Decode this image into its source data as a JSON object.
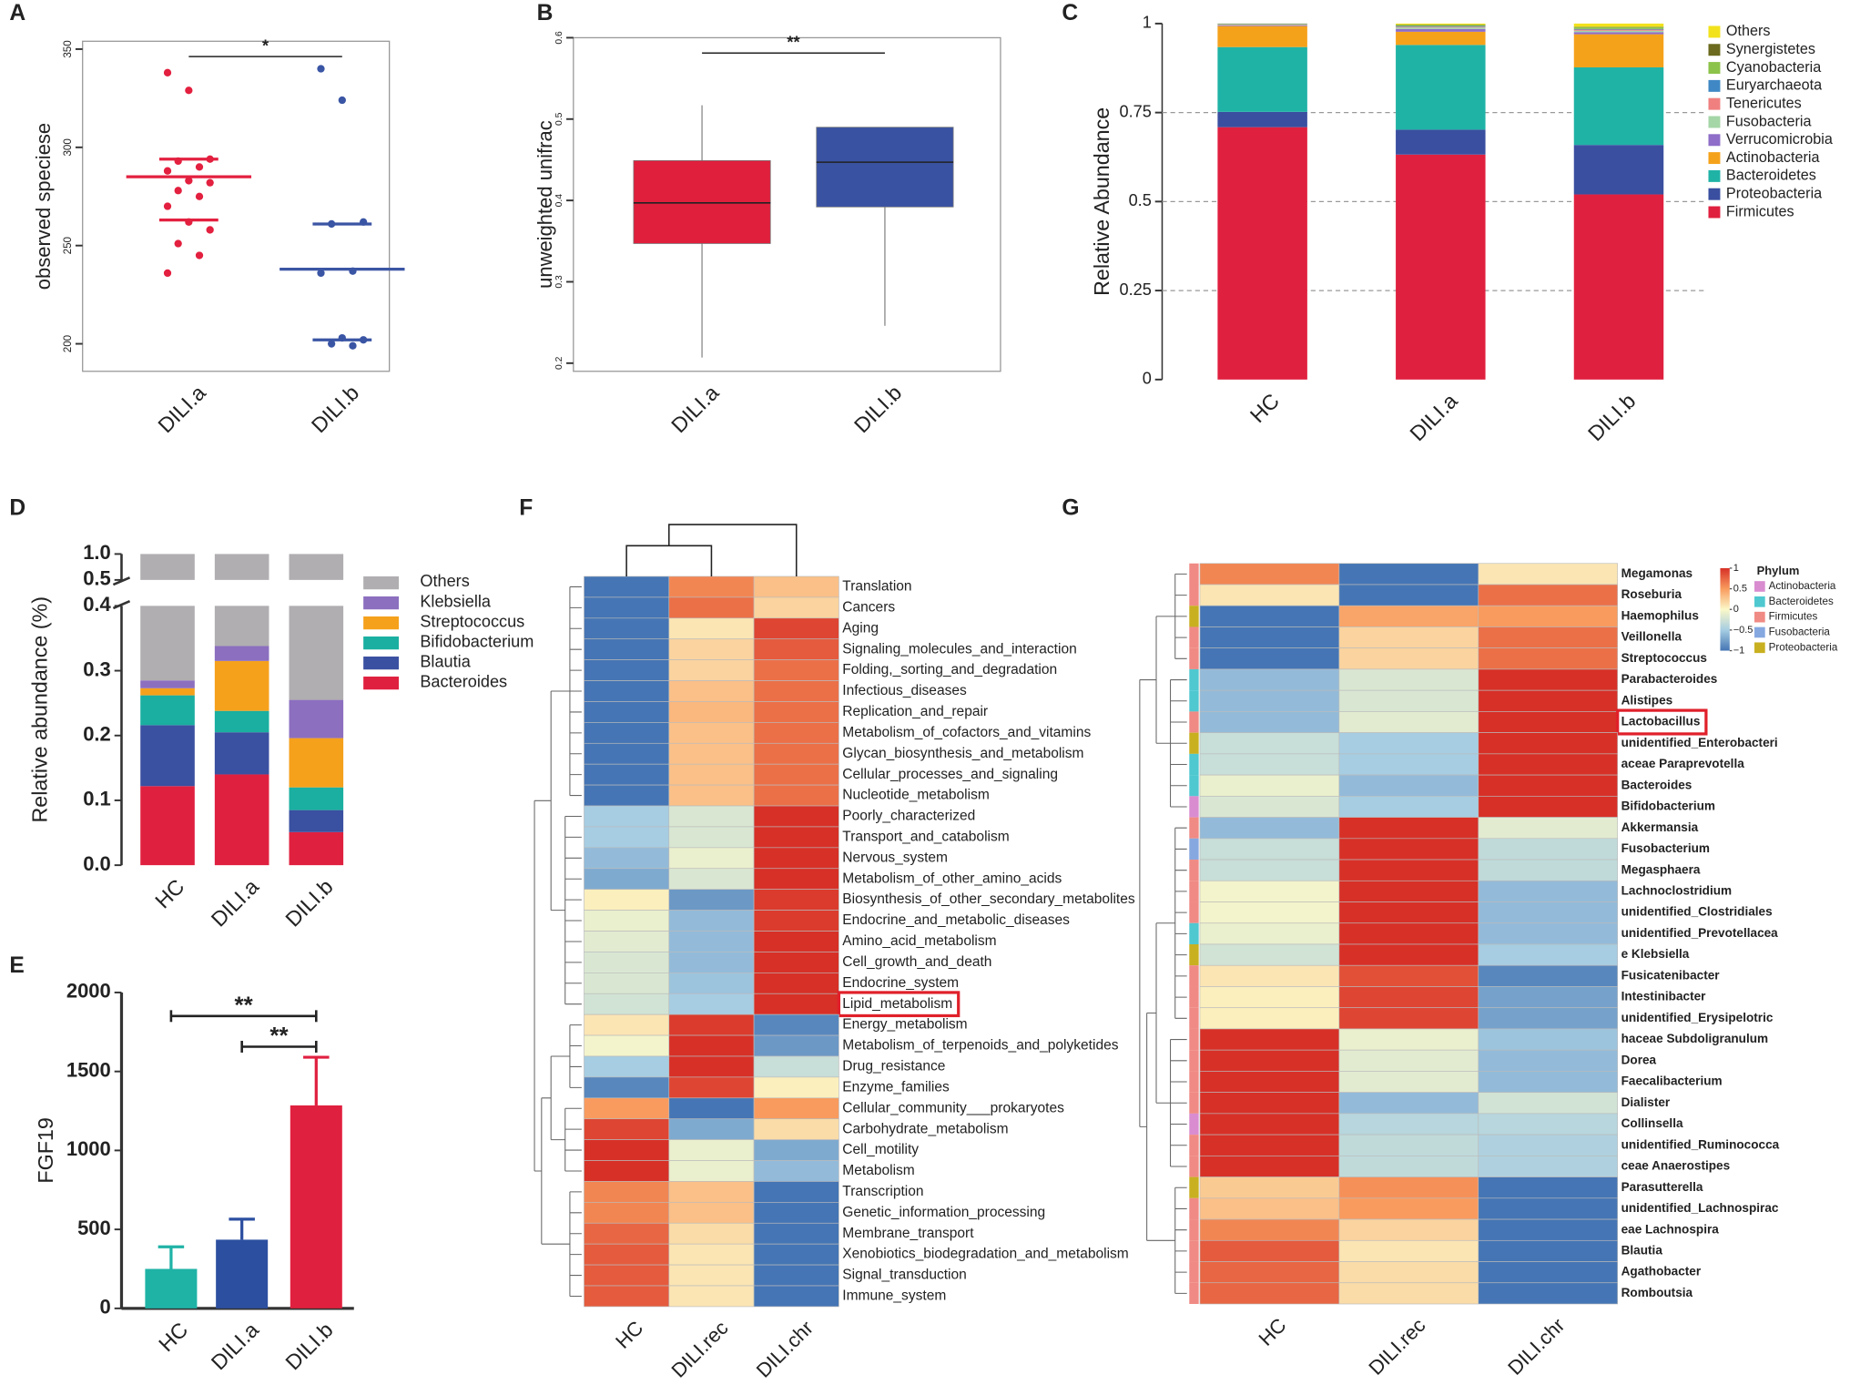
{
  "chart_data": [
    {
      "panel_label": "A",
      "type": "strip",
      "y_label": "observed speciese",
      "categories": [
        "DILI.a",
        "DILI.b"
      ],
      "points": [
        [
          338,
          329,
          294,
          293,
          290,
          288,
          283,
          282,
          278,
          275,
          270,
          262,
          258,
          251,
          245,
          236
        ],
        [
          340,
          324,
          262,
          261,
          237,
          236,
          203,
          202,
          200,
          199
        ]
      ],
      "summary_lines": [
        [
          294,
          285,
          263
        ],
        [
          261,
          238,
          202
        ]
      ],
      "colors": [
        "#e3203f",
        "#3a55a4"
      ],
      "ylim": [
        186,
        354
      ],
      "yticks": [
        200,
        250,
        300,
        350
      ],
      "annotations": [
        {
          "text": "*",
          "pair": [
            "DILI.a",
            "DILI.b"
          ]
        }
      ]
    },
    {
      "panel_label": "B",
      "type": "box",
      "y_label": "unweighted unifrac",
      "categories": [
        "DILI.a",
        "DILI.b"
      ],
      "boxes": [
        {
          "min": 0.207,
          "q1": 0.347,
          "median": 0.397,
          "q3": 0.449,
          "max": 0.517
        },
        {
          "min": 0.246,
          "q1": 0.392,
          "median": 0.447,
          "q3": 0.49,
          "max": 0.49
        }
      ],
      "colors": [
        "#e01f3c",
        "#3a52a2"
      ],
      "ylim": [
        0.19,
        0.6
      ],
      "yticks": [
        0.2,
        0.3,
        0.4,
        0.5,
        0.6
      ],
      "annotations": [
        {
          "text": "**",
          "pair": [
            "DILI.a",
            "DILI.b"
          ]
        }
      ]
    },
    {
      "panel_label": "C",
      "type": "stacked_bar",
      "y_label": "Relative Abundance",
      "categories": [
        "HC",
        "DILI.a",
        "DILI.b"
      ],
      "series": [
        {
          "name": "Others",
          "color": "#f2e21c",
          "values": [
            0.001,
            0.006,
            0.01
          ]
        },
        {
          "name": "Synergistetes",
          "color": "#6b6a1e",
          "values": [
            0.001,
            0.001,
            0.001
          ]
        },
        {
          "name": "Cyanobacteria",
          "color": "#8cc34a",
          "values": [
            0.001,
            0.003,
            0.005
          ]
        },
        {
          "name": "Euryarchaeota",
          "color": "#3f88c5",
          "values": [
            0.001,
            0.002,
            0.002
          ]
        },
        {
          "name": "Tenericutes",
          "color": "#f08080",
          "values": [
            0.001,
            0.002,
            0.003
          ]
        },
        {
          "name": "Fusobacteria",
          "color": "#a5d6a7",
          "values": [
            0.001,
            0.004,
            0.004
          ]
        },
        {
          "name": "Verrucomicrobia",
          "color": "#8e6ec8",
          "values": [
            0.002,
            0.008,
            0.006
          ]
        },
        {
          "name": "Actinobacteria",
          "color": "#f5a21b",
          "values": [
            0.059,
            0.037,
            0.093
          ]
        },
        {
          "name": "Bacteroidetes",
          "color": "#1fb3a6",
          "values": [
            0.182,
            0.238,
            0.218
          ]
        },
        {
          "name": "Proteobacteria",
          "color": "#3a4fa0",
          "values": [
            0.043,
            0.07,
            0.139
          ]
        },
        {
          "name": "Firmicutes",
          "color": "#e0203f",
          "values": [
            0.709,
            0.632,
            0.52
          ]
        }
      ],
      "ylim": [
        0,
        1
      ],
      "yticks": [
        0,
        0.25,
        0.5,
        0.75,
        1
      ],
      "grid": true
    },
    {
      "panel_label": "D",
      "type": "stacked_bar",
      "y_label": "Relative abundance (%)",
      "categories": [
        "HC",
        "DILI.a",
        "DILI.b"
      ],
      "series": [
        {
          "name": "Others",
          "color": "#b0aeb0",
          "values": [
            0.715,
            0.662,
            0.745
          ]
        },
        {
          "name": "Klebsiella",
          "color": "#8c6fbf",
          "values": [
            0.012,
            0.023,
            0.059
          ]
        },
        {
          "name": "Streptococcus",
          "color": "#f5a11c",
          "values": [
            0.011,
            0.077,
            0.076
          ]
        },
        {
          "name": "Bifidobacterium",
          "color": "#1aafa0",
          "values": [
            0.046,
            0.033,
            0.035
          ]
        },
        {
          "name": "Blautia",
          "color": "#3a50a0",
          "values": [
            0.094,
            0.065,
            0.034
          ]
        },
        {
          "name": "Bacteroides",
          "color": "#e0203f",
          "values": [
            0.122,
            0.14,
            0.051
          ]
        }
      ],
      "ylim": [
        0,
        1
      ],
      "axis_break": [
        0.4,
        0.5
      ],
      "yticks": [
        {
          "value": 0,
          "label": "0.0"
        },
        0.1,
        0.2,
        0.3,
        0.4,
        0.5,
        {
          "value": 1,
          "label": "1.0"
        }
      ]
    },
    {
      "panel_label": "E",
      "type": "bar",
      "y_label": "FGF19",
      "categories": [
        "HC",
        "DILI.a",
        "DILI.b"
      ],
      "values": [
        250,
        435,
        1285
      ],
      "errors": [
        140,
        130,
        305
      ],
      "colors": [
        "#1fb3a6",
        "#2c4fa0",
        "#e0203f"
      ],
      "ylim": [
        0,
        2000
      ],
      "yticks": [
        0,
        500,
        1000,
        1500,
        2000
      ],
      "annotations": [
        {
          "text": "**",
          "pair": [
            "HC",
            "DILI.b"
          ]
        },
        {
          "text": "**",
          "pair": [
            "DILI.a",
            "DILI.b"
          ]
        }
      ]
    },
    {
      "panel_label": "F",
      "type": "heatmap",
      "columns": [
        "HC",
        "DILI.rec",
        "DILI.chr"
      ],
      "rows": [
        "Translation",
        "Cancers",
        "Aging",
        "Signaling_molecules_and_interaction",
        "Folding,_sorting_and_degradation",
        "Infectious_diseases",
        "Replication_and_repair",
        "Metabolism_of_cofactors_and_vitamins",
        "Glycan_biosynthesis_and_metabolism",
        "Cellular_processes_and_signaling",
        "Nucleotide_metabolism",
        "Poorly_characterized",
        "Transport_and_catabolism",
        "Nervous_system",
        "Metabolism_of_other_amino_acids",
        "Biosynthesis_of_other_secondary_metabolites",
        "Endocrine_and_metabolic_diseases",
        "Amino_acid_metabolism",
        "Cell_growth_and_death",
        "Endocrine_system",
        "Lipid_metabolism",
        "Energy_metabolism",
        "Metabolism_of_terpenoids_and_polyketides",
        "Drug_resistance",
        "Enzyme_families",
        "Cellular_community___prokaryotes",
        "Carbohydrate_metabolism",
        "Cell_motility",
        "Metabolism",
        "Transcription",
        "Genetic_information_processing",
        "Membrane_transport",
        "Xenobiotics_biodegradation_and_metabolism",
        "Signal_transduction",
        "Immune_system"
      ],
      "values": [
        [
          -1,
          0.6,
          0.3
        ],
        [
          -1,
          0.7,
          0.2
        ],
        [
          -1,
          0.1,
          0.9
        ],
        [
          -1,
          0.2,
          0.8
        ],
        [
          -1,
          0.2,
          0.7
        ],
        [
          -1,
          0.3,
          0.7
        ],
        [
          -1,
          0.35,
          0.7
        ],
        [
          -1,
          0.3,
          0.7
        ],
        [
          -1,
          0.3,
          0.7
        ],
        [
          -1,
          0.3,
          0.7
        ],
        [
          -1,
          0.3,
          0.7
        ],
        [
          -0.5,
          -0.2,
          1
        ],
        [
          -0.5,
          -0.2,
          1
        ],
        [
          -0.6,
          -0.1,
          1
        ],
        [
          -0.7,
          -0.2,
          1
        ],
        [
          0.05,
          -0.8,
          0.95
        ],
        [
          -0.1,
          -0.6,
          0.95
        ],
        [
          -0.15,
          -0.6,
          1
        ],
        [
          -0.2,
          -0.6,
          1
        ],
        [
          -0.2,
          -0.55,
          1
        ],
        [
          -0.25,
          -0.5,
          1
        ],
        [
          0.1,
          0.95,
          -0.9
        ],
        [
          -0.05,
          1,
          -0.8
        ],
        [
          -0.5,
          1,
          -0.3
        ],
        [
          -0.9,
          0.9,
          0.05
        ],
        [
          0.5,
          -1,
          0.5
        ],
        [
          0.9,
          -0.7,
          0.15
        ],
        [
          1,
          -0.1,
          -0.7
        ],
        [
          1,
          -0.1,
          -0.6
        ],
        [
          0.6,
          0.3,
          -1
        ],
        [
          0.6,
          0.3,
          -1
        ],
        [
          0.75,
          0.15,
          -1
        ],
        [
          0.8,
          0.1,
          -1
        ],
        [
          0.8,
          0.1,
          -1
        ],
        [
          0.8,
          0.1,
          -1
        ]
      ],
      "clim": [
        -1,
        1
      ],
      "colors": [
        "#4575b4",
        "#a6cde2",
        "#fbf8c8",
        "#f99b5e",
        "#d73027"
      ],
      "highlight_row": "Lipid_metabolism"
    },
    {
      "panel_label": "G",
      "type": "heatmap",
      "columns": [
        "HC",
        "DILI.rec",
        "DILI.chr"
      ],
      "rows": [
        "Megamonas",
        "Roseburia",
        "Haemophilus",
        "Veillonella",
        "Streptococcus",
        "Parabacteroides",
        "Alistipes",
        "Lactobacillus",
        "unidentified_Enterobacteri",
        "aceae Paraprevotella",
        "Bacteroides",
        "Bifidobacterium",
        "Akkermansia",
        "Fusobacterium",
        "Megasphaera",
        "Lachnoclostridium",
        "unidentified_Clostridiales",
        "unidentified_Prevotellacea",
        "e Klebsiella",
        "Fusicatenibacter",
        "Intestinibacter",
        "unidentified_Erysipelotric",
        "haceae Subdoligranulum",
        "Dorea",
        "Faecalibacterium",
        "Dialister",
        "Collinsella",
        "unidentified_Ruminococca",
        "ceae Anaerostipes",
        "Parasutterella",
        "unidentified_Lachnospirac",
        "eae Lachnospira",
        "Blautia",
        "Agathobacter",
        "Romboutsia"
      ],
      "values": [
        [
          0.6,
          -1,
          0.1
        ],
        [
          0.1,
          -1,
          0.7
        ],
        [
          -1,
          0.45,
          0.5
        ],
        [
          -1,
          0.2,
          0.7
        ],
        [
          -1,
          0.2,
          0.7
        ],
        [
          -0.6,
          -0.2,
          1
        ],
        [
          -0.6,
          -0.2,
          1
        ],
        [
          -0.6,
          -0.15,
          1
        ],
        [
          -0.3,
          -0.5,
          1
        ],
        [
          -0.3,
          -0.5,
          1
        ],
        [
          -0.1,
          -0.6,
          1
        ],
        [
          -0.2,
          -0.5,
          1
        ],
        [
          -0.6,
          1,
          -0.15
        ],
        [
          -0.3,
          1,
          -0.35
        ],
        [
          -0.3,
          1,
          -0.35
        ],
        [
          -0.05,
          1,
          -0.6
        ],
        [
          -0.05,
          1,
          -0.6
        ],
        [
          -0.1,
          1,
          -0.6
        ],
        [
          -0.25,
          1,
          -0.5
        ],
        [
          0.1,
          0.85,
          -0.9
        ],
        [
          0.05,
          0.9,
          -0.75
        ],
        [
          0.05,
          0.9,
          -0.75
        ],
        [
          1,
          -0.1,
          -0.55
        ],
        [
          1,
          -0.15,
          -0.6
        ],
        [
          1,
          -0.15,
          -0.6
        ],
        [
          1,
          -0.6,
          -0.25
        ],
        [
          1,
          -0.4,
          -0.4
        ],
        [
          1,
          -0.35,
          -0.45
        ],
        [
          1,
          -0.35,
          -0.45
        ],
        [
          0.25,
          0.55,
          -1
        ],
        [
          0.3,
          0.5,
          -1
        ],
        [
          0.6,
          0.2,
          -1
        ],
        [
          0.8,
          0.1,
          -1
        ],
        [
          0.75,
          0.15,
          -1
        ],
        [
          0.75,
          0.15,
          -1
        ]
      ],
      "clim": [
        -1,
        1
      ],
      "colors": [
        "#4575b4",
        "#a6cde2",
        "#fbf8c8",
        "#f99b5e",
        "#d73027"
      ],
      "highlight_row": "Lactobacillus",
      "colorbar_ticks": [
        1,
        0.5,
        0,
        {
          "value": -0.5,
          "label": "−0.5"
        },
        {
          "value": -1,
          "label": "−1"
        }
      ],
      "row_groups": [
        "Firmicutes",
        "Firmicutes",
        "Proteobacteria",
        "Firmicutes",
        "Firmicutes",
        "Bacteroidetes",
        "Bacteroidetes",
        "Firmicutes",
        "Proteobacteria",
        "Bacteroidetes",
        "Bacteroidetes",
        "Actinobacteria",
        "Firmicutes",
        "Fusobacteria",
        "Firmicutes",
        "Firmicutes",
        "Firmicutes",
        "Bacteroidetes",
        "Proteobacteria",
        "Firmicutes",
        "Firmicutes",
        "Firmicutes",
        "Firmicutes",
        "Firmicutes",
        "Firmicutes",
        "Firmicutes",
        "Actinobacteria",
        "Firmicutes",
        "Firmicutes",
        "Proteobacteria",
        "Firmicutes",
        "Firmicutes",
        "Firmicutes",
        "Firmicutes",
        "Firmicutes"
      ],
      "group_legend": {
        "title": "Phylum",
        "names": [
          "Actinobacteria",
          "Bacteroidetes",
          "Firmicutes",
          "Fusobacteria",
          "Proteobacteria"
        ],
        "colors": [
          "#d98cd0",
          "#4fc8d0",
          "#f08a84",
          "#86a8e0",
          "#c8b020"
        ]
      }
    }
  ]
}
